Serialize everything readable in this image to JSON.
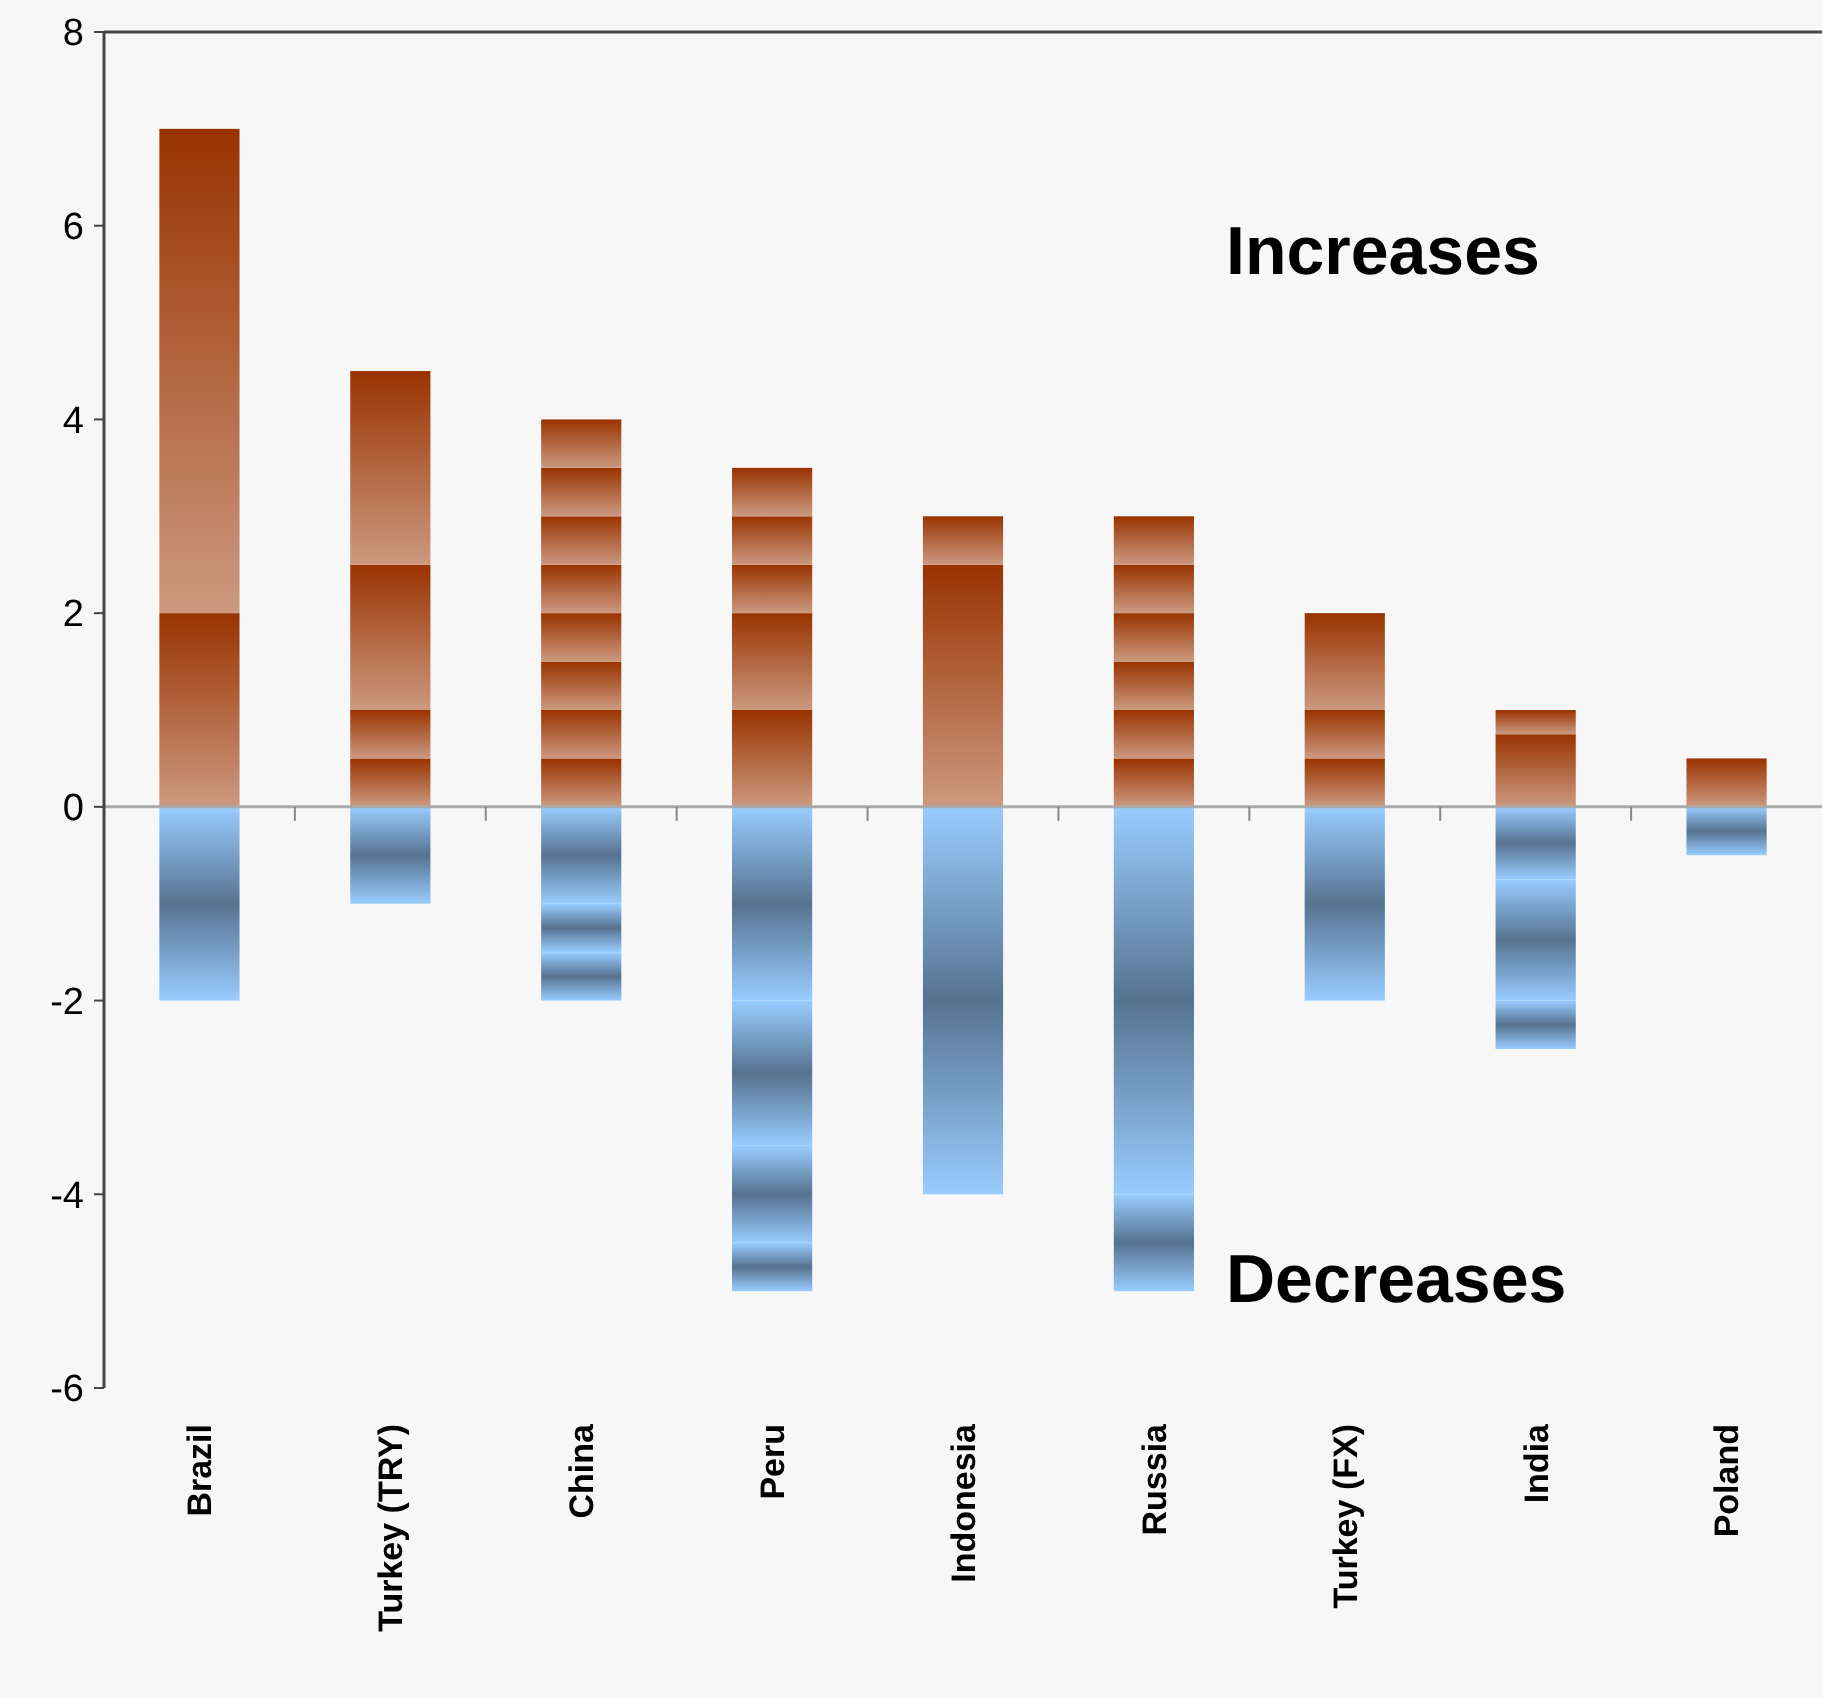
{
  "chart_data": {
    "type": "bar",
    "stacked": true,
    "categories": [
      "Brazil",
      "Turkey (TRY)",
      "China",
      "Peru",
      "Indonesia",
      "Russia",
      "Turkey (FX)",
      "India",
      "Poland"
    ],
    "series": [
      {
        "color": "#993300",
        "values": [
          2,
          0.5,
          0.5,
          1,
          2.5,
          0.5,
          0.5,
          0.75,
          0.5
        ]
      },
      {
        "color": "#993300",
        "values": [
          5,
          0.5,
          0.5,
          1,
          0.5,
          0.5,
          0.5,
          0.25,
          null
        ]
      },
      {
        "color": "#993300",
        "values": [
          null,
          1.5,
          0.5,
          0.5,
          null,
          0.5,
          1,
          null,
          null
        ]
      },
      {
        "color": "#993300",
        "values": [
          null,
          2,
          0.5,
          0.5,
          null,
          0.5,
          null,
          null,
          null
        ]
      },
      {
        "color": "#993300",
        "values": [
          null,
          null,
          0.5,
          0.5,
          null,
          0.5,
          null,
          null,
          null
        ]
      },
      {
        "color": "#993300",
        "values": [
          null,
          null,
          0.5,
          null,
          null,
          0.5,
          null,
          null,
          null
        ]
      },
      {
        "color": "#993300",
        "values": [
          null,
          null,
          0.5,
          null,
          null,
          null,
          null,
          null,
          null
        ]
      },
      {
        "color": "#993300",
        "values": [
          null,
          null,
          0.5,
          null,
          null,
          null,
          null,
          null,
          null
        ]
      },
      {
        "color": "#99ccff",
        "values": [
          -2,
          -1,
          -1,
          -2,
          -4,
          -4,
          -2,
          -0.75,
          -0.5
        ]
      },
      {
        "color": "#99ccff",
        "values": [
          null,
          null,
          -0.5,
          -1.5,
          null,
          -1,
          null,
          -1.25,
          null
        ]
      },
      {
        "color": "#99ccff",
        "values": [
          null,
          null,
          -0.5,
          -1,
          null,
          null,
          null,
          -0.5,
          null
        ]
      },
      {
        "color": "#99ccff",
        "values": [
          null,
          null,
          null,
          -0.5,
          null,
          null,
          null,
          null,
          null
        ]
      }
    ],
    "ylim": [
      -6,
      8
    ],
    "yticks": [
      -6,
      -4,
      -2,
      0,
      2,
      4,
      6,
      8
    ],
    "annotations": [
      "Increases",
      "Decreases"
    ]
  }
}
